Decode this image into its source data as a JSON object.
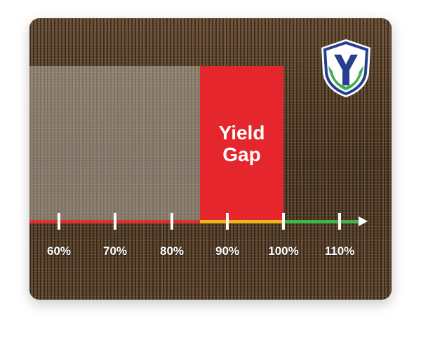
{
  "graphic": {
    "gap_label": "Yield\nGap",
    "axis_ticks": [
      "60%",
      "70%",
      "80%",
      "90%",
      "100%",
      "110%"
    ],
    "colors": {
      "gap": "#e5262d",
      "axis_red": "#e0302f",
      "axis_yellow": "#f3b417",
      "axis_green": "#3fb54a",
      "logo_blue": "#263f8f",
      "logo_green": "#3fae49"
    },
    "logo": {
      "icon": "shield-y-logo-icon"
    },
    "background": "soybean-canopy-texture"
  }
}
